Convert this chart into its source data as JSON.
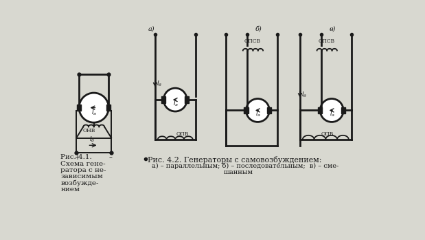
{
  "bg_color": "#d8d8d0",
  "line_color": "#1a1a1a",
  "fig1_caption_line1": "Рис. 4.1.",
  "fig1_caption_line2": "Схема гене-",
  "fig1_caption_line3": "ратора с не-",
  "fig1_caption_line4": "зависимым",
  "fig1_caption_line5": "возбужде-",
  "fig1_caption_line6": "нием",
  "fig2_caption_line1": "Рис. 4.2. Генераторы с самовозбуждением:",
  "fig2_caption_line2": "а) – параллельным; б) – последовательным;  в) – сме-",
  "fig2_caption_line3": "шанным",
  "label_a": "а)",
  "label_b": "б)",
  "label_v": "в)",
  "label_opv": "ОПВ",
  "label_opsv": "ОПСВ"
}
